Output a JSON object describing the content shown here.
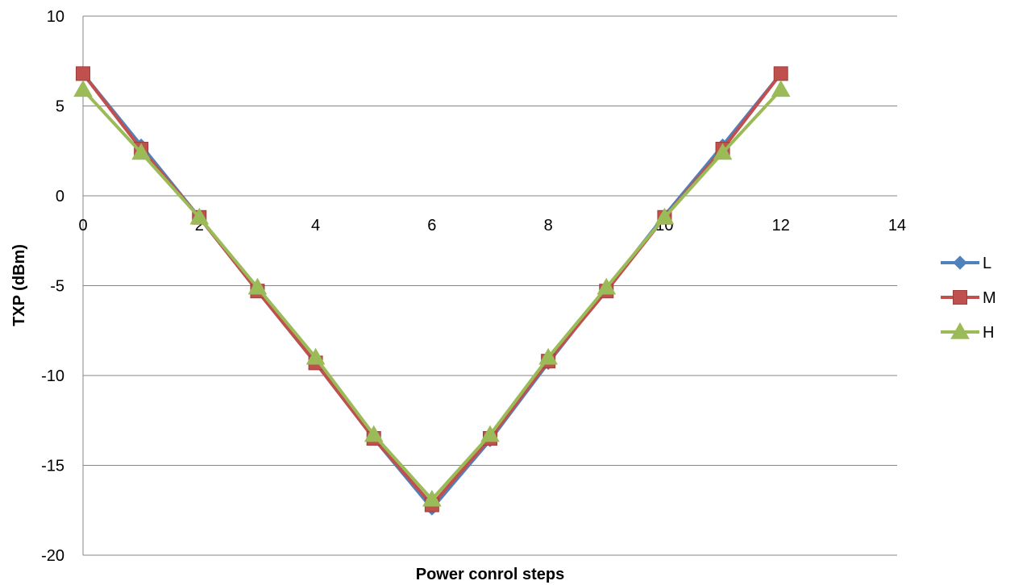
{
  "chart_data": {
    "type": "line",
    "title": "",
    "xlabel": "Power conrol steps",
    "ylabel": "TXP (dBm)",
    "xlim": [
      0,
      14
    ],
    "ylim": [
      -20,
      10
    ],
    "xticks": [
      0,
      2,
      4,
      6,
      8,
      10,
      12,
      14
    ],
    "yticks": [
      10,
      5,
      0,
      -5,
      -10,
      -15,
      -20
    ],
    "x_tick_labels": [
      "0",
      "2",
      "4",
      "6",
      "8",
      "10",
      "12",
      "14"
    ],
    "y_tick_labels": [
      "10",
      "5",
      "0",
      "-5",
      "-10",
      "-15",
      "-20"
    ],
    "grid": "horizontal",
    "legend_position": "right",
    "x": [
      0,
      1,
      2,
      3,
      4,
      5,
      6,
      7,
      8,
      9,
      10,
      11,
      12
    ],
    "series": [
      {
        "name": "L",
        "color": "#4F81BD",
        "marker": "diamond",
        "values": [
          6.8,
          2.8,
          -1.2,
          -5.3,
          -9.3,
          -13.5,
          -17.4,
          -13.6,
          -9.3,
          -5.2,
          -1.1,
          2.8,
          6.8
        ]
      },
      {
        "name": "M",
        "color": "#C0504D",
        "marker": "square",
        "values": [
          6.8,
          2.6,
          -1.2,
          -5.3,
          -9.3,
          -13.5,
          -17.2,
          -13.5,
          -9.2,
          -5.3,
          -1.2,
          2.6,
          6.8
        ]
      },
      {
        "name": "H",
        "color": "#9BBB59",
        "marker": "triangle",
        "values": [
          5.9,
          2.4,
          -1.2,
          -5.1,
          -9.0,
          -13.3,
          -16.9,
          -13.3,
          -9.0,
          -5.1,
          -1.2,
          2.4,
          5.9
        ]
      }
    ]
  }
}
